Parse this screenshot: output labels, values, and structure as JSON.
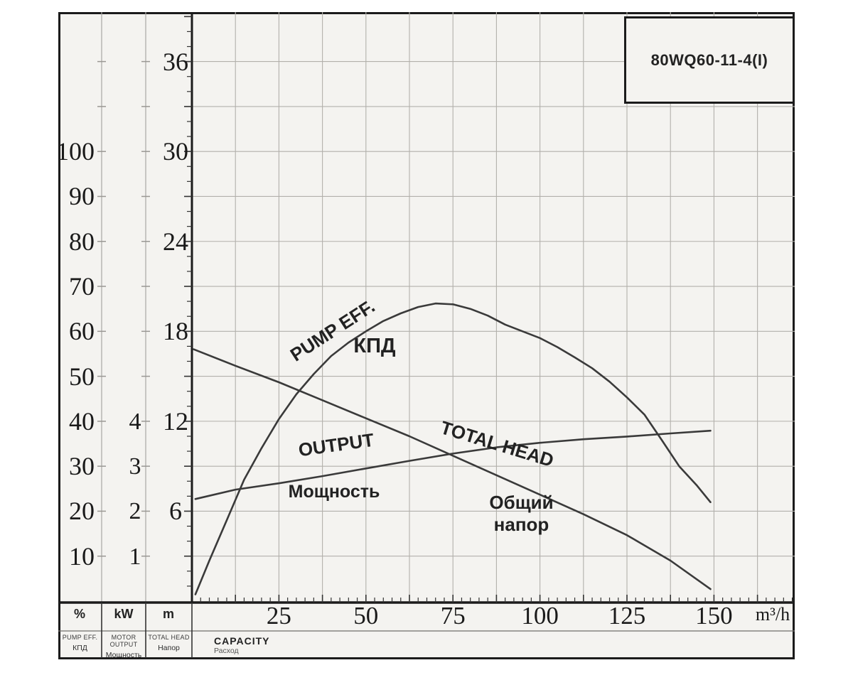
{
  "model_box": {
    "model": "80WQ60-11-4(I)"
  },
  "chart_data": {
    "type": "line",
    "title": "80WQ60-11-4(I)",
    "colors": {
      "paper": "#f4f3f0",
      "ink": "#1b1b1b",
      "grid": "#b2b0ab",
      "curve": "#3a3a3a",
      "tickgrid": "#9a9894"
    },
    "x_axis": {
      "name": "CAPACITY",
      "name_ru": "Расход",
      "unit": "m³/h",
      "ticks": [
        25,
        50,
        75,
        100,
        125,
        150
      ],
      "range": [
        0,
        173.2
      ],
      "grid_step": 12.5,
      "minor_tick_step": 2.5,
      "grid": true
    },
    "y_axes": [
      {
        "id": "efficiency",
        "unit": "%",
        "name": "PUMP EFF.",
        "name_ru": "КПД",
        "ticks": [
          10,
          20,
          30,
          40,
          50,
          60,
          70,
          80,
          90,
          100
        ],
        "range": [
          0,
          131.0
        ]
      },
      {
        "id": "power",
        "unit": "kW",
        "name": "MOTOR OUTPUT",
        "name_ru": "Мощность",
        "ticks": [
          1,
          2,
          3,
          4
        ],
        "range": [
          0,
          13.1
        ]
      },
      {
        "id": "head",
        "unit": "m",
        "name": "TOTAL HEAD",
        "name_ru": "Напор",
        "ticks": [
          6,
          12,
          18,
          24,
          30,
          36
        ],
        "range": [
          0,
          39.3
        ],
        "grid_step": 3,
        "minor_tick_step": 1
      }
    ],
    "series": [
      {
        "name": "PUMP EFF.",
        "label": "PUMP EFF.",
        "label_ru": "КПД",
        "axis": "efficiency",
        "points": [
          [
            1,
            1.5
          ],
          [
            5,
            9
          ],
          [
            10,
            18
          ],
          [
            15,
            27
          ],
          [
            20,
            34
          ],
          [
            25,
            40.5
          ],
          [
            30,
            46
          ],
          [
            35,
            50.5
          ],
          [
            40,
            54.5
          ],
          [
            45,
            57.5
          ],
          [
            50,
            60
          ],
          [
            55,
            62.3
          ],
          [
            60,
            64
          ],
          [
            65,
            65.4
          ],
          [
            70,
            66.2
          ],
          [
            75,
            66
          ],
          [
            80,
            65
          ],
          [
            85,
            63.5
          ],
          [
            90,
            61.5
          ],
          [
            95,
            60
          ],
          [
            100,
            58.5
          ],
          [
            105,
            56.5
          ],
          [
            110,
            54.2
          ],
          [
            115,
            51.8
          ],
          [
            120,
            48.8
          ],
          [
            125,
            45.3
          ],
          [
            130,
            41.5
          ],
          [
            135,
            35.8
          ],
          [
            140,
            30
          ],
          [
            145,
            25.8
          ],
          [
            149,
            22
          ]
        ]
      },
      {
        "name": "OUTPUT",
        "label": "OUTPUT",
        "label_ru": "Мощность",
        "axis": "power",
        "points": [
          [
            1,
            2.27
          ],
          [
            12.5,
            2.48
          ],
          [
            25,
            2.62
          ],
          [
            37.5,
            2.78
          ],
          [
            50,
            2.95
          ],
          [
            62.5,
            3.12
          ],
          [
            75,
            3.28
          ],
          [
            87.5,
            3.42
          ],
          [
            100,
            3.52
          ],
          [
            112.5,
            3.6
          ],
          [
            125,
            3.66
          ],
          [
            137.5,
            3.73
          ],
          [
            149,
            3.79
          ]
        ]
      },
      {
        "name": "TOTAL HEAD",
        "label": "TOTAL HEAD",
        "label_ru": "Общий напор",
        "axis": "head",
        "points": [
          [
            0.5,
            16.8
          ],
          [
            12.5,
            15.7
          ],
          [
            25,
            14.6
          ],
          [
            37.5,
            13.4
          ],
          [
            50,
            12.2
          ],
          [
            62.5,
            11.0
          ],
          [
            75,
            9.7
          ],
          [
            87.5,
            8.4
          ],
          [
            100,
            7.1
          ],
          [
            112.5,
            5.8
          ],
          [
            125,
            4.4
          ],
          [
            137.5,
            2.7
          ],
          [
            149,
            0.8
          ]
        ]
      }
    ]
  }
}
